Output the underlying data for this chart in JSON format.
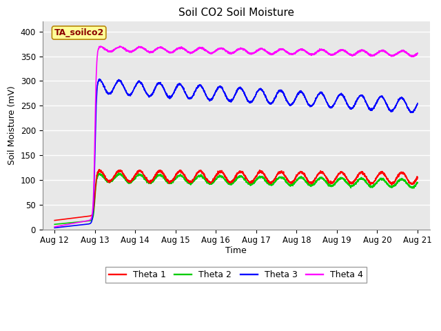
{
  "title": "Soil CO2 Soil Moisture",
  "ylabel": "Soil Moisture (mV)",
  "xlabel": "Time",
  "annotation_text": "TA_soilco2",
  "annotation_color": "#8B0000",
  "annotation_bg": "#FFFF99",
  "annotation_border": "#B8860B",
  "ylim": [
    0,
    420
  ],
  "yticks": [
    0,
    50,
    100,
    150,
    200,
    250,
    300,
    350,
    400
  ],
  "fig_bg": "#FFFFFF",
  "plot_bg": "#E8E8E8",
  "grid_color": "#FFFFFF",
  "legend_labels": [
    "Theta 1",
    "Theta 2",
    "Theta 3",
    "Theta 4"
  ],
  "line_colors": [
    "#FF0000",
    "#00CC00",
    "#0000FF",
    "#FF00FF"
  ],
  "line_width": 1.2,
  "title_fontsize": 11,
  "label_fontsize": 9,
  "tick_fontsize": 8.5
}
